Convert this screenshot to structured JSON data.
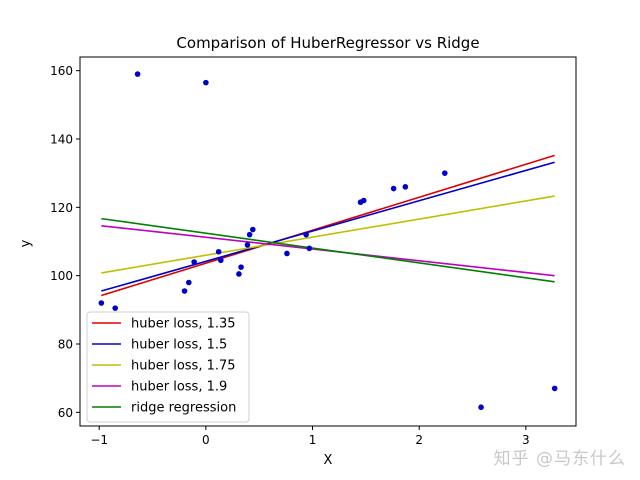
{
  "chart_data": {
    "type": "scatter",
    "title": "Comparison of HuberRegressor vs Ridge",
    "xlabel": "X",
    "ylabel": "y",
    "xlim": [
      -1.18,
      3.47
    ],
    "ylim": [
      56,
      164
    ],
    "xticks": [
      -1,
      0,
      1,
      2,
      3
    ],
    "xtick_labels": [
      "−1",
      "0",
      "1",
      "2",
      "3"
    ],
    "yticks": [
      60,
      80,
      100,
      120,
      140,
      160
    ],
    "ytick_labels": [
      "60",
      "80",
      "100",
      "120",
      "140",
      "160"
    ],
    "grid": false,
    "legend_position": "lower left",
    "points": {
      "color": "#0000cc",
      "x": [
        -0.98,
        -0.85,
        -0.64,
        -0.2,
        -0.16,
        -0.11,
        0.0,
        0.12,
        0.14,
        0.31,
        0.33,
        0.39,
        0.41,
        0.44,
        0.76,
        0.94,
        0.97,
        1.45,
        1.48,
        1.76,
        1.87,
        2.24,
        2.58,
        3.27
      ],
      "y": [
        92,
        90.5,
        159,
        95.5,
        98,
        104,
        156.5,
        107,
        104.5,
        100.5,
        102.5,
        109,
        112,
        113.5,
        106.5,
        112,
        108,
        121.5,
        122,
        125.5,
        126,
        130,
        61.5,
        67
      ]
    },
    "series": [
      {
        "name": "huber loss, 1.35",
        "color": "#dd0000",
        "x": [
          -0.98,
          3.27
        ],
        "y": [
          94.2,
          135.2
        ]
      },
      {
        "name": "huber loss, 1.5",
        "color": "#0000cc",
        "x": [
          -0.98,
          3.27
        ],
        "y": [
          95.5,
          133.2
        ]
      },
      {
        "name": "huber loss, 1.75",
        "color": "#bfbf00",
        "x": [
          -0.98,
          3.27
        ],
        "y": [
          100.8,
          123.3
        ]
      },
      {
        "name": "huber loss, 1.9",
        "color": "#bf00bf",
        "x": [
          -0.98,
          3.27
        ],
        "y": [
          114.6,
          100.0
        ]
      },
      {
        "name": "ridge regression",
        "color": "#008000",
        "x": [
          -0.98,
          3.27
        ],
        "y": [
          116.7,
          98.2
        ]
      }
    ]
  },
  "watermark": "知乎 @马东什么"
}
